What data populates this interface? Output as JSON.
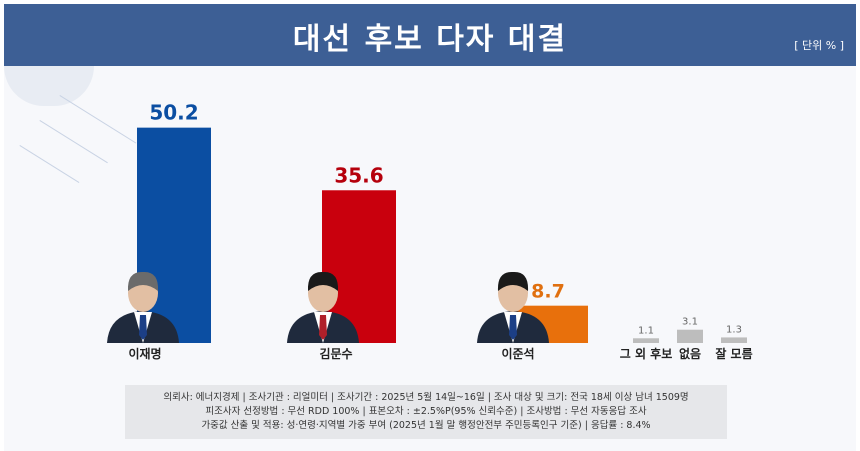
{
  "header": {
    "title": "대선 후보 다자 대결",
    "unit": "[ 단위 % ]"
  },
  "chart_data": {
    "type": "bar",
    "title": "대선 후보 다자 대결",
    "unit": "[ 단위 % ]",
    "categories": [
      "이재명",
      "김문수",
      "이준석",
      "그 외 후보",
      "없음",
      "잘 모름"
    ],
    "values": [
      50.2,
      35.6,
      8.7,
      1.1,
      3.1,
      1.3
    ],
    "colors": [
      "#0b4ea2",
      "#c9000d",
      "#e8700c",
      "#bdbdbd",
      "#bdbdbd",
      "#bdbdbd"
    ],
    "value_colors": [
      "#0b4ea2",
      "#b5000c",
      "#e07010",
      "#777777",
      "#777777",
      "#777777"
    ],
    "candidate_photos": [
      true,
      true,
      true,
      false,
      false,
      false
    ]
  },
  "source": {
    "line1": "의뢰사: 에너지경제 | 조사기관 : 리얼미터  |  조사기간 : 2025년 5월 14일~16일 | 조사 대상 및 크기: 전국 18세 이상 남녀 1509명",
    "line2": "피조사자 선정방법 : 무선 RDD 100% | 표본오차 : ±2.5%P(95% 신뢰수준) | 조사방법 : 무선 자동응답 조사",
    "line3": "가중값 산출 및 적용: 성·연령·지역별 가중 부여 (2025년 1월 말 행정안전부 주민등록인구 기준) | 응답률 : 8.4%"
  }
}
